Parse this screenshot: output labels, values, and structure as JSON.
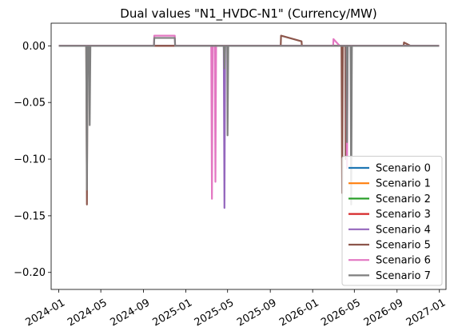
{
  "chart_data": {
    "type": "line",
    "title": "Dual values \"N1_HVDC-N1\" (Currency/MW)",
    "xlabel": "",
    "ylabel": "",
    "x_ticks": [
      "2024-01",
      "2024-05",
      "2024-09",
      "2025-01",
      "2025-05",
      "2025-09",
      "2026-01",
      "2026-05",
      "2026-09",
      "2027-01"
    ],
    "x_range": [
      "2023-12-10",
      "2027-01-20"
    ],
    "ylim": [
      -0.215,
      0.02
    ],
    "y_ticks": [
      0.0,
      -0.05,
      -0.1,
      -0.15,
      -0.2
    ],
    "y_tick_labels": [
      "0.00",
      "−0.05",
      "−0.10",
      "−0.15",
      "−0.20"
    ],
    "grid": false,
    "legend_position": "lower-right",
    "series": [
      {
        "name": "Scenario 0",
        "color": "#1f77b4",
        "points": [
          [
            "2024-01-01",
            0.0
          ],
          [
            "2026-12-31",
            0.0
          ]
        ]
      },
      {
        "name": "Scenario 1",
        "color": "#ff7f0e",
        "points": [
          [
            "2024-01-01",
            0.0
          ],
          [
            "2026-12-31",
            0.0
          ]
        ]
      },
      {
        "name": "Scenario 2",
        "color": "#2ca02c",
        "points": [
          [
            "2024-01-01",
            0.0
          ],
          [
            "2026-12-31",
            0.0
          ]
        ]
      },
      {
        "name": "Scenario 3",
        "color": "#d62728",
        "points": [
          [
            "2024-01-01",
            0.0
          ],
          [
            "2026-12-31",
            0.0
          ]
        ]
      },
      {
        "name": "Scenario 4",
        "color": "#9467bd",
        "points": [
          [
            "2024-01-01",
            0.0
          ],
          [
            "2025-04-20",
            0.0
          ],
          [
            "2025-04-22",
            -0.143
          ],
          [
            "2025-04-24",
            0.0
          ],
          [
            "2026-12-31",
            0.0
          ]
        ]
      },
      {
        "name": "Scenario 5",
        "color": "#8c564b",
        "points": [
          [
            "2024-01-01",
            0.0
          ],
          [
            "2024-03-20",
            0.0
          ],
          [
            "2024-03-22",
            -0.14
          ],
          [
            "2024-03-24",
            0.0
          ],
          [
            "2025-10-01",
            0.0
          ],
          [
            "2025-10-02",
            0.009
          ],
          [
            "2025-11-30",
            0.004
          ],
          [
            "2025-12-01",
            0.0
          ],
          [
            "2026-03-25",
            0.0
          ],
          [
            "2026-03-27",
            -0.13
          ],
          [
            "2026-03-29",
            0.0
          ],
          [
            "2026-04-05",
            0.0
          ],
          [
            "2026-04-06",
            -0.1
          ],
          [
            "2026-04-08",
            0.0
          ],
          [
            "2026-09-20",
            0.0
          ],
          [
            "2026-09-21",
            0.003
          ],
          [
            "2026-10-10",
            0.0
          ],
          [
            "2026-12-31",
            0.0
          ]
        ]
      },
      {
        "name": "Scenario 6",
        "color": "#e377c2",
        "points": [
          [
            "2024-01-01",
            0.0
          ],
          [
            "2024-10-01",
            0.0
          ],
          [
            "2024-10-02",
            0.009
          ],
          [
            "2024-11-30",
            0.009
          ],
          [
            "2024-12-01",
            0.0
          ],
          [
            "2025-03-15",
            0.0
          ],
          [
            "2025-03-17",
            -0.135
          ],
          [
            "2025-03-19",
            0.0
          ],
          [
            "2025-03-25",
            0.0
          ],
          [
            "2025-03-27",
            -0.12
          ],
          [
            "2025-03-29",
            0.0
          ],
          [
            "2026-03-01",
            0.0
          ],
          [
            "2026-03-02",
            0.006
          ],
          [
            "2026-03-20",
            0.0
          ],
          [
            "2026-04-08",
            0.0
          ],
          [
            "2026-04-10",
            -0.108
          ],
          [
            "2026-04-12",
            0.0
          ],
          [
            "2026-12-31",
            0.0
          ]
        ]
      },
      {
        "name": "Scenario 7",
        "color": "#7f7f7f",
        "points": [
          [
            "2024-01-01",
            0.0
          ],
          [
            "2024-03-20",
            0.0
          ],
          [
            "2024-03-22",
            -0.127
          ],
          [
            "2024-03-24",
            0.0
          ],
          [
            "2024-03-28",
            0.0
          ],
          [
            "2024-03-30",
            -0.07
          ],
          [
            "2024-04-01",
            0.0
          ],
          [
            "2024-10-01",
            0.0
          ],
          [
            "2024-10-02",
            0.007
          ],
          [
            "2024-11-30",
            0.007
          ],
          [
            "2024-12-01",
            0.0
          ],
          [
            "2025-04-20",
            0.0
          ],
          [
            "2025-04-22",
            -0.02
          ],
          [
            "2025-04-24",
            0.0
          ],
          [
            "2025-04-30",
            0.0
          ],
          [
            "2025-05-01",
            -0.079
          ],
          [
            "2025-05-03",
            0.0
          ],
          [
            "2026-04-08",
            0.0
          ],
          [
            "2026-04-10",
            -0.085
          ],
          [
            "2026-04-12",
            0.0
          ],
          [
            "2026-04-20",
            0.0
          ],
          [
            "2026-04-22",
            -0.14
          ],
          [
            "2026-04-24",
            0.0
          ],
          [
            "2026-12-31",
            0.0
          ]
        ]
      }
    ]
  }
}
